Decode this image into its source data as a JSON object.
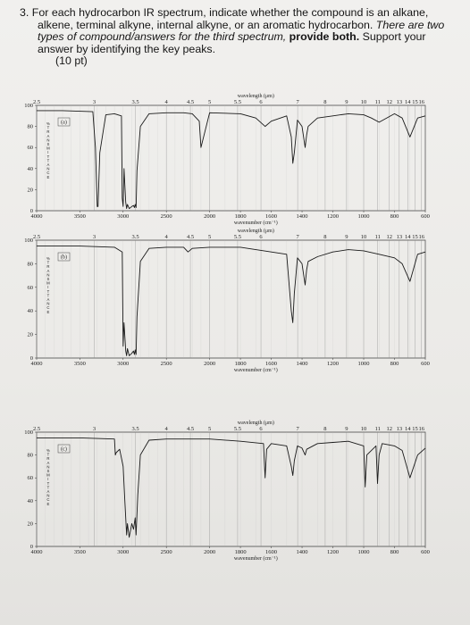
{
  "question": {
    "number": "3.",
    "line1": "For each hydrocarbon IR spectrum, indicate whether the compound is an alkane,",
    "line2": "alkene, terminal alkyne, internal alkyne, or an aromatic hydrocarbon.",
    "line2_ital": " There are two",
    "line3_ital": "types of compound/answers for the third spectrum,",
    "line3_bold": " provide both.",
    "line3_rest": " Support your",
    "line4": "answer by identifying the key peaks.",
    "points": "(10 pt)"
  },
  "spectra_common": {
    "wavelength_title": "wavelength (μm)",
    "wavenumber_title": "wavenumber (cm⁻¹)",
    "transmittance_label": "%TRANSMITTANCE",
    "top_ticks": [
      "2.5",
      "3",
      "3.5",
      "4",
      "4.5",
      "5",
      "5.5",
      "6",
      "7",
      "8",
      "9",
      "10",
      "11",
      "12",
      "13",
      "14",
      "15",
      "16"
    ],
    "bottom_ticks": [
      "4000",
      "3500",
      "3000",
      "2500",
      "2000",
      "1800",
      "1600",
      "1400",
      "1200",
      "1000",
      "800",
      "600"
    ],
    "y_ticks": [
      "100",
      "80",
      "60",
      "40",
      "20",
      "0"
    ]
  },
  "spectra": [
    {
      "label": "(a)"
    },
    {
      "label": "(b)"
    },
    {
      "label": "(c)"
    }
  ],
  "chart_data": [
    {
      "type": "line",
      "title": "",
      "xlabel": "wavenumber (cm⁻¹)",
      "ylabel": "%TRANSMITTANCE",
      "xlim": [
        4000,
        600
      ],
      "ylim": [
        0,
        100
      ],
      "series": [
        {
          "x": [
            4000,
            3700,
            3350,
            3320,
            3300,
            3290,
            3270,
            3200,
            3100,
            3020,
            3010,
            3000,
            2990,
            2970,
            2960,
            2950,
            2930,
            2900,
            2880,
            2870,
            2860,
            2850,
            2840,
            2800,
            2700,
            2500,
            2300,
            2200,
            2120,
            2100,
            2000,
            1800,
            1700,
            1640,
            1600,
            1500,
            1470,
            1460,
            1450,
            1430,
            1400,
            1380,
            1370,
            1360,
            1300,
            1200,
            1100,
            1000,
            950,
            900,
            800,
            750,
            700,
            650,
            600
          ],
          "y": [
            95,
            95,
            94,
            60,
            4,
            4,
            55,
            91,
            92,
            90,
            12,
            4,
            40,
            8,
            2,
            6,
            2,
            4,
            5,
            3,
            6,
            3,
            38,
            80,
            92,
            93,
            93,
            92,
            85,
            60,
            93,
            92,
            88,
            80,
            85,
            90,
            70,
            45,
            55,
            86,
            80,
            60,
            72,
            80,
            88,
            90,
            92,
            91,
            88,
            84,
            92,
            88,
            70,
            88,
            90
          ]
        }
      ]
    },
    {
      "type": "line",
      "title": "",
      "xlabel": "wavenumber (cm⁻¹)",
      "ylabel": "%TRANSMITTANCE",
      "xlim": [
        4000,
        600
      ],
      "ylim": [
        0,
        100
      ],
      "series": [
        {
          "x": [
            4000,
            3500,
            3100,
            3010,
            3000,
            2990,
            2970,
            2960,
            2950,
            2930,
            2900,
            2880,
            2870,
            2860,
            2850,
            2840,
            2800,
            2700,
            2500,
            2300,
            2250,
            2200,
            2000,
            1800,
            1700,
            1600,
            1500,
            1470,
            1460,
            1450,
            1430,
            1400,
            1380,
            1370,
            1360,
            1300,
            1200,
            1100,
            1000,
            900,
            800,
            750,
            700,
            650,
            600
          ],
          "y": [
            95,
            95,
            94,
            90,
            10,
            30,
            6,
            2,
            8,
            2,
            4,
            6,
            3,
            7,
            3,
            35,
            82,
            93,
            94,
            94,
            90,
            93,
            94,
            94,
            92,
            90,
            88,
            40,
            30,
            55,
            85,
            80,
            62,
            75,
            82,
            86,
            90,
            92,
            91,
            88,
            85,
            80,
            65,
            88,
            90
          ]
        }
      ]
    },
    {
      "type": "line",
      "title": "",
      "xlabel": "wavenumber (cm⁻¹)",
      "ylabel": "%TRANSMITTANCE",
      "xlim": [
        4000,
        600
      ],
      "ylim": [
        0,
        100
      ],
      "series": [
        {
          "x": [
            4000,
            3500,
            3100,
            3090,
            3080,
            3040,
            3000,
            2980,
            2960,
            2950,
            2930,
            2900,
            2880,
            2860,
            2850,
            2830,
            2800,
            2700,
            2500,
            2300,
            2000,
            1800,
            1650,
            1640,
            1630,
            1600,
            1500,
            1470,
            1460,
            1450,
            1430,
            1400,
            1380,
            1370,
            1300,
            1200,
            1100,
            1000,
            990,
            980,
            920,
            910,
            900,
            880,
            800,
            750,
            700,
            650,
            600
          ],
          "y": [
            95,
            95,
            94,
            80,
            82,
            85,
            70,
            40,
            10,
            20,
            8,
            20,
            15,
            25,
            10,
            45,
            80,
            93,
            94,
            94,
            94,
            92,
            90,
            60,
            85,
            90,
            88,
            70,
            62,
            75,
            88,
            86,
            80,
            85,
            90,
            91,
            92,
            88,
            52,
            80,
            88,
            55,
            80,
            90,
            88,
            84,
            60,
            80,
            86
          ]
        }
      ]
    }
  ]
}
